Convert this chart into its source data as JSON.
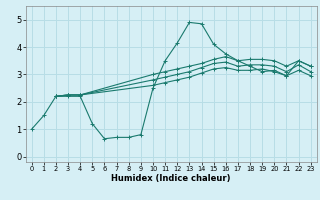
{
  "xlabel": "Humidex (Indice chaleur)",
  "bg_color": "#d6eff5",
  "grid_color": "#b8dde6",
  "line_color": "#1a7a6e",
  "xlim": [
    -0.5,
    23.5
  ],
  "ylim": [
    -0.2,
    5.5
  ],
  "xticks": [
    0,
    1,
    2,
    3,
    4,
    5,
    6,
    7,
    8,
    9,
    10,
    11,
    12,
    13,
    14,
    15,
    16,
    17,
    18,
    19,
    20,
    21,
    22,
    23
  ],
  "yticks": [
    0,
    1,
    2,
    3,
    4,
    5
  ],
  "lines": [
    {
      "x": [
        0,
        1,
        2,
        3,
        4,
        5,
        6,
        7,
        8,
        9,
        10,
        11,
        12,
        13,
        14,
        15,
        16,
        17,
        18,
        19,
        20,
        21,
        22,
        23
      ],
      "y": [
        1.0,
        1.5,
        2.2,
        2.2,
        2.2,
        1.2,
        0.65,
        0.7,
        0.7,
        0.8,
        2.5,
        3.5,
        4.15,
        4.9,
        4.85,
        4.1,
        3.75,
        3.5,
        3.3,
        3.1,
        3.15,
        2.95,
        3.5,
        3.3
      ]
    },
    {
      "x": [
        2,
        3,
        4,
        10,
        11,
        12,
        13,
        14,
        15,
        16,
        17,
        18,
        19,
        20,
        21,
        22,
        23
      ],
      "y": [
        2.2,
        2.25,
        2.25,
        3.0,
        3.1,
        3.2,
        3.3,
        3.4,
        3.55,
        3.65,
        3.5,
        3.55,
        3.55,
        3.5,
        3.3,
        3.5,
        3.3
      ]
    },
    {
      "x": [
        2,
        3,
        4,
        10,
        11,
        12,
        13,
        14,
        15,
        16,
        17,
        18,
        19,
        20,
        21,
        22,
        23
      ],
      "y": [
        2.2,
        2.25,
        2.25,
        2.8,
        2.9,
        3.0,
        3.1,
        3.25,
        3.4,
        3.45,
        3.3,
        3.35,
        3.35,
        3.3,
        3.1,
        3.35,
        3.1
      ]
    },
    {
      "x": [
        2,
        3,
        4,
        10,
        11,
        12,
        13,
        14,
        15,
        16,
        17,
        18,
        19,
        20,
        21,
        22,
        23
      ],
      "y": [
        2.2,
        2.25,
        2.25,
        2.6,
        2.7,
        2.8,
        2.9,
        3.05,
        3.2,
        3.25,
        3.15,
        3.15,
        3.2,
        3.1,
        2.95,
        3.15,
        2.95
      ]
    }
  ]
}
